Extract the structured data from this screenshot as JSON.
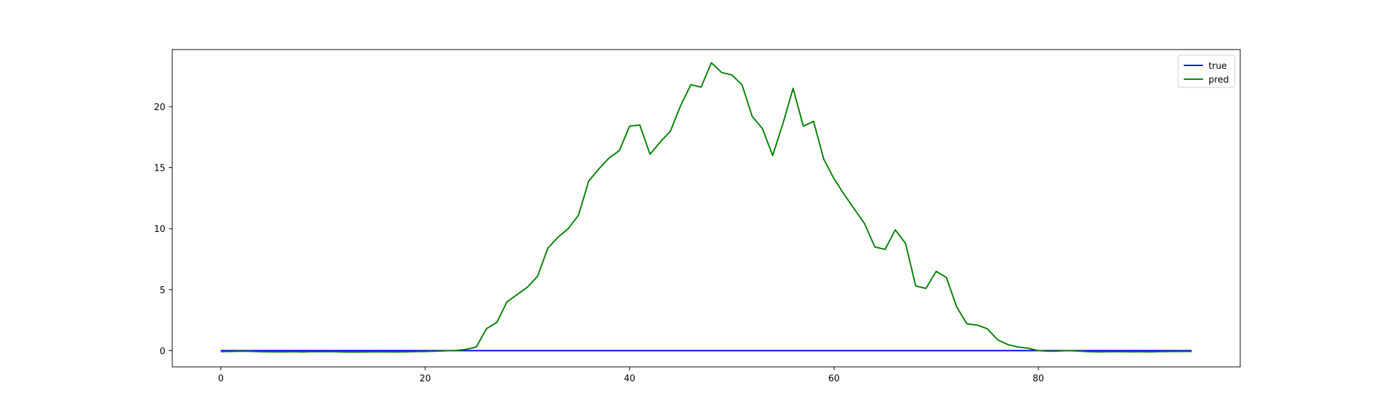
{
  "chart_data": {
    "type": "line",
    "title": "",
    "xlabel": "",
    "ylabel": "",
    "xlim": [
      -4.75,
      99.75
    ],
    "ylim": [
      -1.33,
      24.68
    ],
    "xticks": [
      0,
      20,
      40,
      60,
      80
    ],
    "yticks": [
      0,
      5,
      10,
      15,
      20
    ],
    "grid": false,
    "legend_position": "top-right",
    "series": [
      {
        "name": "true",
        "color": "#0000ff",
        "values": [
          0,
          0,
          0,
          0,
          0,
          0,
          0,
          0,
          0,
          0,
          0,
          0,
          0,
          0,
          0,
          0,
          0,
          0,
          0,
          0,
          0,
          0,
          0,
          0,
          0,
          0,
          0,
          0,
          0,
          0,
          0,
          0,
          0,
          0,
          0,
          0,
          0,
          0,
          0,
          0,
          0,
          0,
          0,
          0,
          0,
          0,
          0,
          0,
          0,
          0,
          0,
          0,
          0,
          0,
          0,
          0,
          0,
          0,
          0,
          0,
          0,
          0,
          0,
          0,
          0,
          0,
          0,
          0,
          0,
          0,
          0,
          0,
          0,
          0,
          0,
          0,
          0,
          0,
          0,
          0,
          0,
          0,
          0,
          0,
          0,
          0,
          0,
          0,
          0,
          0,
          0,
          0,
          0,
          0,
          0,
          0
        ]
      },
      {
        "name": "pred",
        "color": "#008000",
        "values": [
          -0.08,
          -0.07,
          -0.05,
          -0.06,
          -0.09,
          -0.1,
          -0.1,
          -0.09,
          -0.11,
          -0.08,
          -0.09,
          -0.08,
          -0.11,
          -0.12,
          -0.11,
          -0.1,
          -0.1,
          -0.11,
          -0.1,
          -0.08,
          -0.07,
          -0.05,
          -0.01,
          0.02,
          0.1,
          0.3,
          1.8,
          2.3,
          4.0,
          4.6,
          5.2,
          6.1,
          8.4,
          9.3,
          10.0,
          11.1,
          13.9,
          14.9,
          15.8,
          16.4,
          18.4,
          18.5,
          16.1,
          17.1,
          18.0,
          20.1,
          21.8,
          21.6,
          23.6,
          22.8,
          22.6,
          21.8,
          19.2,
          18.2,
          16.0,
          18.6,
          21.5,
          18.4,
          18.8,
          15.7,
          14.1,
          12.8,
          11.6,
          10.4,
          8.5,
          8.3,
          9.9,
          8.8,
          5.3,
          5.1,
          6.5,
          6.0,
          3.6,
          2.2,
          2.1,
          1.8,
          0.9,
          0.5,
          0.3,
          0.2,
          0.0,
          -0.05,
          -0.03,
          0.0,
          -0.04,
          -0.09,
          -0.1,
          -0.09,
          -0.08,
          -0.1,
          -0.09,
          -0.1,
          -0.08,
          -0.07,
          -0.06,
          -0.07
        ]
      }
    ]
  }
}
